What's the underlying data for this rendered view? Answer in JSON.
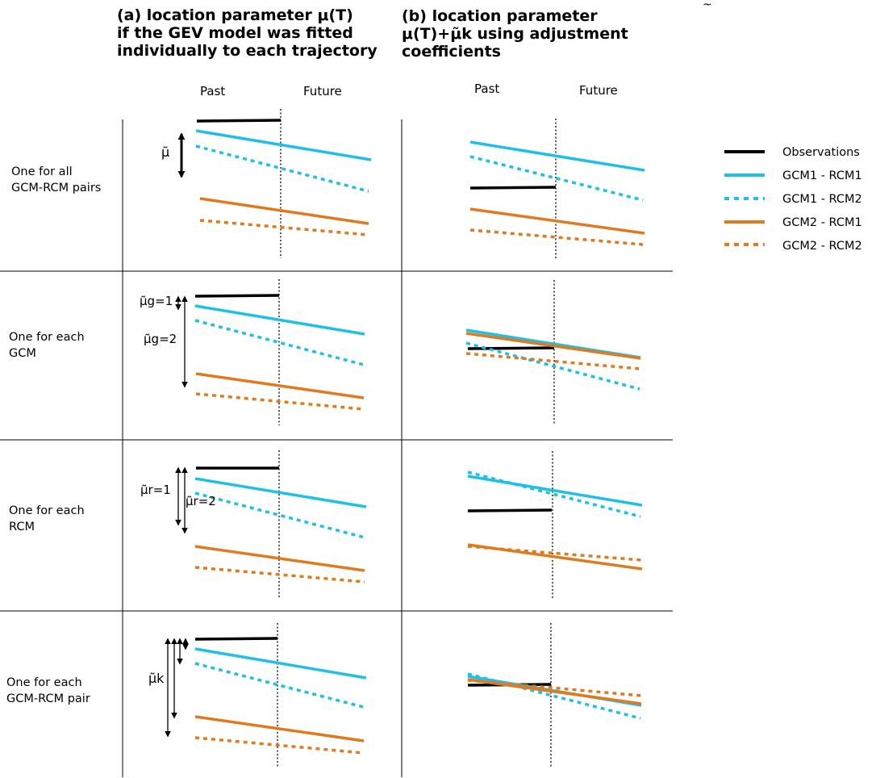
{
  "panel_a": {
    "title_lines": [
      "(a) location parameter μ(T)",
      "if the GEV model was fitted",
      "individually to each trajectory"
    ],
    "past_label": "Past",
    "future_label": "Future"
  },
  "panel_b": {
    "title_lines": [
      "(b) location parameter",
      "μ(T)+μ̃k using adjustment",
      "coefficients"
    ],
    "past_label": "Past",
    "future_label": "Future"
  },
  "tilde_mark": "~",
  "rows": [
    {
      "label_lines": [
        "One for all",
        "GCM-RCM pairs"
      ],
      "annotations": [
        "μ̃"
      ]
    },
    {
      "label_lines": [
        "One for each",
        "GCM"
      ],
      "annotations": [
        "μ̃g=1",
        "μ̃g=2"
      ]
    },
    {
      "label_lines": [
        "One for each",
        "RCM"
      ],
      "annotations": [
        "μ̃r=1",
        "μ̃r=2"
      ]
    },
    {
      "label_lines": [
        "One for each",
        "GCM-RCM pair"
      ],
      "annotations": [
        "μ̃k"
      ]
    }
  ],
  "legend": [
    {
      "label": "Observations",
      "color": "#000000",
      "style": "solid"
    },
    {
      "label": "GCM1 - RCM1",
      "color": "#1ec0e6",
      "style": "solid"
    },
    {
      "label": "GCM1 - RCM2",
      "color": "#1ec0e6",
      "style": "dotted"
    },
    {
      "label": "GCM2 - RCM1",
      "color": "#e07a1f",
      "style": "solid"
    },
    {
      "label": "GCM2 - RCM2",
      "color": "#e07a1f",
      "style": "dotted"
    }
  ]
}
